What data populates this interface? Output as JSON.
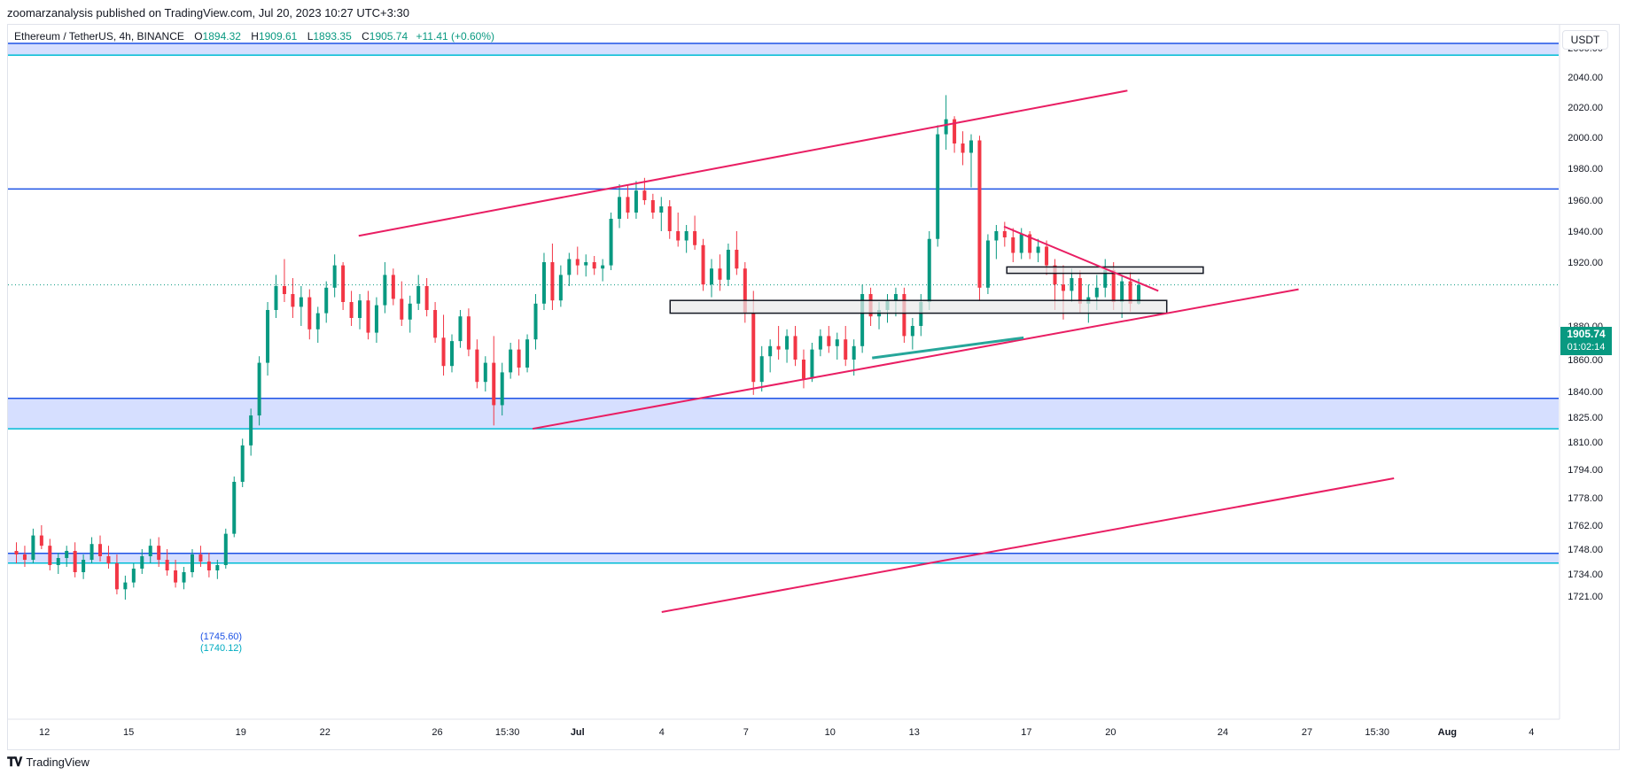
{
  "header": {
    "publisher": "zoomarzanalysis published on TradingView.com, Jul 20, 2023 10:27 UTC+3:30"
  },
  "legend": {
    "symbol": "Ethereum / TetherUS, 4h, BINANCE",
    "open_label": "O",
    "open": "1894.32",
    "high_label": "H",
    "high": "1909.61",
    "low_label": "L",
    "low": "1893.35",
    "close_label": "C",
    "close": "1905.74",
    "change": "+11.41 (+0.60%)"
  },
  "price_scale": {
    "unit": "USDT"
  },
  "last_price": {
    "value": "1905.74",
    "countdown": "01:02:14"
  },
  "annotations": {
    "level_a": "(1745.60)",
    "level_b": "(1740.12)"
  },
  "footer": {
    "brand": "TradingView",
    "logo": "tradingview-logo-icon"
  },
  "colors": {
    "up": "#089981",
    "down": "#f23645",
    "trendline": "#e91e63",
    "support": "#1e53e5",
    "zone_fill": "#d1dcff",
    "zone_edge": "#00bcd4",
    "green_line": "#26a69a"
  },
  "chart_data": {
    "type": "candlestick",
    "symbol": "Ethereum / TetherUS",
    "interval": "4h",
    "y_ticks": [
      2060,
      2040,
      2020,
      2000,
      1980,
      1960,
      1940,
      1920,
      1880,
      1860,
      1840,
      1825,
      1810,
      1794,
      1778,
      1762,
      1748,
      1734,
      1721
    ],
    "y_tick_labels": [
      "2060.00",
      "2040.00",
      "2020.00",
      "2000.00",
      "1980.00",
      "1960.00",
      "1940.00",
      "1920.00",
      "1880.00",
      "1860.00",
      "1840.00",
      "1825.00",
      "1810.00",
      "1794.00",
      "1778.00",
      "1762.00",
      "1748.00",
      "1734.00",
      "1721.00"
    ],
    "x_ticks": [
      "12",
      "15",
      "19",
      "22",
      "26",
      "15:30",
      "Jul",
      "4",
      "7",
      "10",
      "13",
      "17",
      "20",
      "24",
      "27",
      "15:30",
      "Aug",
      "4"
    ],
    "x_ticks_day": [
      -19,
      -16,
      -12,
      -9,
      -5,
      -2.5,
      0,
      3,
      6,
      9,
      12,
      16,
      19,
      23,
      26,
      28.5,
      31,
      34
    ],
    "ylim": [
      1712,
      2068
    ],
    "xlim": [
      -20.3,
      35
    ],
    "last_price": 1905.74,
    "horizontal_zones": [
      {
        "from": 2055,
        "to": 2064
      },
      {
        "from": 1818,
        "to": 1836
      },
      {
        "from": 1740.12,
        "to": 1745.6
      }
    ],
    "horizontal_lines": [
      1967
    ],
    "rectangles": [
      {
        "x0": 3.3,
        "x1": 21.0,
        "y0": 1888,
        "y1": 1896
      },
      {
        "x0": 15.3,
        "x1": 22.3,
        "y0": 1913,
        "y1": 1917
      }
    ],
    "trendlines": [
      {
        "x0": -7.8,
        "y0": 1937,
        "x1": 19.6,
        "y1": 2031,
        "color": "trendline"
      },
      {
        "x0": -1.6,
        "y0": 1818,
        "x1": 25.7,
        "y1": 1903,
        "color": "trendline"
      },
      {
        "x0": 15.2,
        "y0": 1943,
        "x1": 20.7,
        "y1": 1902,
        "color": "trendline"
      },
      {
        "x0": 3.0,
        "y0": 1712,
        "x1": 29.1,
        "y1": 1789,
        "color": "trendline"
      },
      {
        "x0": 10.5,
        "y0": 1861,
        "x1": 15.9,
        "y1": 1873,
        "color": "green_line"
      }
    ],
    "ohlc": [
      [
        1747,
        1752,
        1740,
        1745
      ],
      [
        1745,
        1750,
        1738,
        1742
      ],
      [
        1742,
        1760,
        1740,
        1756
      ],
      [
        1756,
        1762,
        1748,
        1750
      ],
      [
        1750,
        1754,
        1736,
        1739
      ],
      [
        1739,
        1746,
        1734,
        1743
      ],
      [
        1743,
        1750,
        1738,
        1747
      ],
      [
        1747,
        1752,
        1732,
        1735
      ],
      [
        1735,
        1745,
        1731,
        1742
      ],
      [
        1742,
        1755,
        1740,
        1751
      ],
      [
        1751,
        1756,
        1741,
        1744
      ],
      [
        1744,
        1750,
        1737,
        1740
      ],
      [
        1740,
        1745,
        1722,
        1725
      ],
      [
        1725,
        1733,
        1719,
        1729
      ],
      [
        1729,
        1740,
        1726,
        1737
      ],
      [
        1737,
        1748,
        1734,
        1744
      ],
      [
        1744,
        1754,
        1740,
        1750
      ],
      [
        1750,
        1755,
        1738,
        1742
      ],
      [
        1742,
        1748,
        1733,
        1736
      ],
      [
        1736,
        1742,
        1726,
        1729
      ],
      [
        1729,
        1738,
        1725,
        1735
      ],
      [
        1735,
        1748,
        1732,
        1745
      ],
      [
        1745,
        1750,
        1738,
        1741
      ],
      [
        1741,
        1746,
        1732,
        1736
      ],
      [
        1736,
        1742,
        1731,
        1739
      ],
      [
        1739,
        1760,
        1737,
        1757
      ],
      [
        1757,
        1790,
        1755,
        1787
      ],
      [
        1787,
        1812,
        1784,
        1808
      ],
      [
        1808,
        1830,
        1802,
        1826
      ],
      [
        1826,
        1862,
        1820,
        1858
      ],
      [
        1858,
        1895,
        1850,
        1890
      ],
      [
        1890,
        1912,
        1885,
        1905
      ],
      [
        1905,
        1922,
        1895,
        1900
      ],
      [
        1900,
        1910,
        1885,
        1892
      ],
      [
        1892,
        1905,
        1880,
        1898
      ],
      [
        1898,
        1903,
        1872,
        1878
      ],
      [
        1878,
        1892,
        1870,
        1888
      ],
      [
        1888,
        1908,
        1882,
        1904
      ],
      [
        1904,
        1925,
        1898,
        1918
      ],
      [
        1918,
        1920,
        1890,
        1895
      ],
      [
        1895,
        1902,
        1880,
        1885
      ],
      [
        1885,
        1900,
        1878,
        1896
      ],
      [
        1896,
        1902,
        1872,
        1876
      ],
      [
        1876,
        1898,
        1870,
        1893
      ],
      [
        1893,
        1920,
        1888,
        1912
      ],
      [
        1912,
        1916,
        1893,
        1897
      ],
      [
        1897,
        1908,
        1880,
        1884
      ],
      [
        1884,
        1899,
        1876,
        1894
      ],
      [
        1894,
        1912,
        1890,
        1905
      ],
      [
        1905,
        1910,
        1886,
        1890
      ],
      [
        1890,
        1895,
        1870,
        1873
      ],
      [
        1873,
        1887,
        1850,
        1856
      ],
      [
        1856,
        1875,
        1852,
        1871
      ],
      [
        1871,
        1890,
        1867,
        1886
      ],
      [
        1886,
        1891,
        1862,
        1866
      ],
      [
        1866,
        1872,
        1842,
        1846
      ],
      [
        1846,
        1862,
        1840,
        1858
      ],
      [
        1858,
        1874,
        1820,
        1832
      ],
      [
        1832,
        1858,
        1826,
        1852
      ],
      [
        1852,
        1870,
        1848,
        1866
      ],
      [
        1866,
        1872,
        1850,
        1855
      ],
      [
        1855,
        1875,
        1852,
        1872
      ],
      [
        1872,
        1900,
        1866,
        1894
      ],
      [
        1894,
        1926,
        1890,
        1920
      ],
      [
        1920,
        1932,
        1890,
        1896
      ],
      [
        1896,
        1918,
        1892,
        1912
      ],
      [
        1912,
        1926,
        1905,
        1922
      ],
      [
        1922,
        1930,
        1912,
        1918
      ],
      [
        1918,
        1925,
        1911,
        1920
      ],
      [
        1920,
        1924,
        1912,
        1916
      ],
      [
        1916,
        1922,
        1908,
        1918
      ],
      [
        1918,
        1952,
        1915,
        1948
      ],
      [
        1948,
        1970,
        1942,
        1962
      ],
      [
        1962,
        1970,
        1948,
        1952
      ],
      [
        1952,
        1972,
        1948,
        1966
      ],
      [
        1966,
        1974,
        1957,
        1960
      ],
      [
        1960,
        1964,
        1948,
        1952
      ],
      [
        1952,
        1962,
        1940,
        1956
      ],
      [
        1956,
        1960,
        1935,
        1940
      ],
      [
        1940,
        1952,
        1930,
        1934
      ],
      [
        1934,
        1944,
        1926,
        1940
      ],
      [
        1940,
        1950,
        1928,
        1931
      ],
      [
        1931,
        1935,
        1902,
        1906
      ],
      [
        1906,
        1922,
        1898,
        1916
      ],
      [
        1916,
        1925,
        1902,
        1909
      ],
      [
        1909,
        1932,
        1905,
        1928
      ],
      [
        1928,
        1940,
        1912,
        1916
      ],
      [
        1916,
        1920,
        1882,
        1888
      ],
      [
        1888,
        1902,
        1838,
        1846
      ],
      [
        1846,
        1868,
        1840,
        1862
      ],
      [
        1862,
        1872,
        1852,
        1868
      ],
      [
        1868,
        1880,
        1860,
        1866
      ],
      [
        1866,
        1878,
        1858,
        1874
      ],
      [
        1874,
        1880,
        1856,
        1860
      ],
      [
        1860,
        1866,
        1842,
        1848
      ],
      [
        1848,
        1870,
        1846,
        1866
      ],
      [
        1866,
        1878,
        1862,
        1874
      ],
      [
        1874,
        1880,
        1864,
        1868
      ],
      [
        1868,
        1876,
        1860,
        1872
      ],
      [
        1872,
        1880,
        1856,
        1860
      ],
      [
        1860,
        1872,
        1850,
        1868
      ],
      [
        1868,
        1906,
        1864,
        1900
      ],
      [
        1900,
        1904,
        1880,
        1886
      ],
      [
        1886,
        1895,
        1878,
        1890
      ],
      [
        1890,
        1900,
        1882,
        1896
      ],
      [
        1896,
        1904,
        1886,
        1900
      ],
      [
        1900,
        1904,
        1870,
        1874
      ],
      [
        1874,
        1885,
        1866,
        1880
      ],
      [
        1880,
        1900,
        1874,
        1895
      ],
      [
        1895,
        1940,
        1890,
        1935
      ],
      [
        1935,
        2008,
        1930,
        2002
      ],
      [
        2002,
        2028,
        1992,
        2012
      ],
      [
        2012,
        2014,
        1990,
        1996
      ],
      [
        1996,
        2004,
        1982,
        1990
      ],
      [
        1990,
        2002,
        1968,
        1998
      ],
      [
        1998,
        2001,
        1896,
        1904
      ],
      [
        1904,
        1938,
        1900,
        1934
      ],
      [
        1934,
        1944,
        1922,
        1940
      ],
      [
        1940,
        1946,
        1930,
        1936
      ],
      [
        1936,
        1942,
        1920,
        1926
      ],
      [
        1926,
        1942,
        1922,
        1938
      ],
      [
        1938,
        1940,
        1922,
        1926
      ],
      [
        1926,
        1935,
        1920,
        1930
      ],
      [
        1930,
        1934,
        1912,
        1918
      ],
      [
        1918,
        1922,
        1890,
        1906
      ],
      [
        1906,
        1918,
        1884,
        1902
      ],
      [
        1902,
        1916,
        1895,
        1910
      ],
      [
        1910,
        1915,
        1888,
        1894
      ],
      [
        1894,
        1906,
        1882,
        1898
      ],
      [
        1898,
        1912,
        1890,
        1904
      ],
      [
        1904,
        1922,
        1898,
        1915
      ],
      [
        1915,
        1920,
        1890,
        1895
      ],
      [
        1895,
        1912,
        1885,
        1908
      ],
      [
        1908,
        1914,
        1889,
        1894
      ],
      [
        1894,
        1909.61,
        1893.35,
        1905.74
      ]
    ]
  }
}
